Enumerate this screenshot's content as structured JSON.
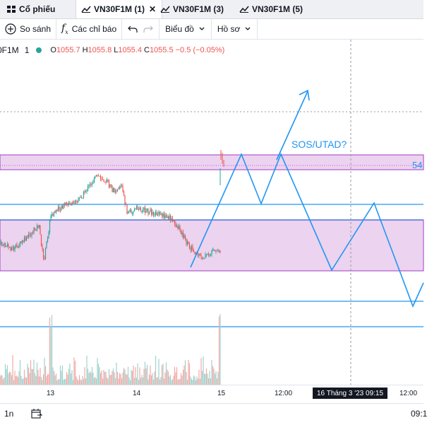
{
  "tabs": [
    {
      "label": "Cổ phiếu",
      "active": false
    },
    {
      "label": "VN30F1M (1)",
      "active": true
    },
    {
      "label": "VN30F1M (3)",
      "active": false
    },
    {
      "label": "VN30F1M (5)",
      "active": false
    }
  ],
  "tab_close": "✕",
  "toolbar": {
    "compare_label": "So sánh",
    "indicators_label": "Các chỉ báo",
    "chart_label": "Biểu đồ",
    "profile_label": "Hồ sơ"
  },
  "legend": {
    "symbol": "0F1M",
    "timeframe": "1",
    "open_key": "O",
    "open": "1055.7",
    "high_key": "H",
    "high": "1055.8",
    "low_key": "L",
    "low": "1055.4",
    "close_key": "C",
    "close": "1055.5",
    "change": "−0.5 (−0.05%)"
  },
  "price_tag": "54",
  "annotation": "SOS/UTAD?",
  "time_axis": {
    "labels": [
      "13",
      "14",
      "15",
      "12:00",
      "12:00"
    ],
    "crosshair": "16 Tháng 3 '23   09:15"
  },
  "bottom": {
    "range": "1n",
    "time": "09:1"
  },
  "colors": {
    "zone_fill": "#ecd3ef",
    "zone_border": "#a23ec4",
    "line_blue": "#2196f3",
    "up": "#26a69a",
    "down": "#ef5350"
  }
}
